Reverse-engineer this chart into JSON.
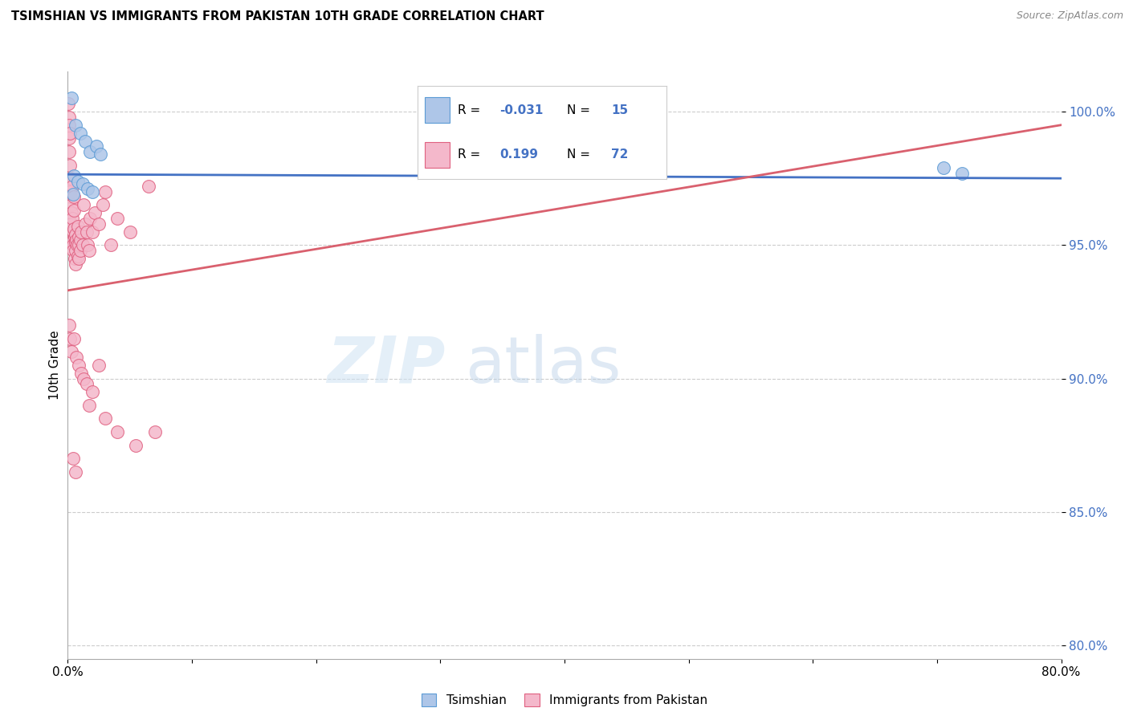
{
  "title": "TSIMSHIAN VS IMMIGRANTS FROM PAKISTAN 10TH GRADE CORRELATION CHART",
  "source": "Source: ZipAtlas.com",
  "ylabel": "10th Grade",
  "xlim": [
    0.0,
    80.0
  ],
  "ylim": [
    79.5,
    101.5
  ],
  "blue_R": -0.031,
  "blue_N": 15,
  "pink_R": 0.199,
  "pink_N": 72,
  "blue_color": "#aec6e8",
  "blue_edge_color": "#5b9bd5",
  "blue_line_color": "#4472c4",
  "pink_color": "#f4b8cb",
  "pink_edge_color": "#e06080",
  "pink_line_color": "#d9606e",
  "legend_label_blue": "Tsimshian",
  "legend_label_pink": "Immigrants from Pakistan",
  "blue_dots_x": [
    0.3,
    0.6,
    1.0,
    1.4,
    1.8,
    2.3,
    2.6,
    0.5,
    0.8,
    1.2,
    1.6,
    2.0,
    0.4,
    70.5,
    72.0
  ],
  "blue_dots_y": [
    100.5,
    99.5,
    99.2,
    98.9,
    98.5,
    98.7,
    98.4,
    97.6,
    97.4,
    97.3,
    97.1,
    97.0,
    96.9,
    97.9,
    97.7
  ],
  "pink_dots_x": [
    0.05,
    0.08,
    0.1,
    0.1,
    0.12,
    0.15,
    0.15,
    0.2,
    0.2,
    0.25,
    0.3,
    0.3,
    0.3,
    0.35,
    0.35,
    0.4,
    0.4,
    0.45,
    0.45,
    0.5,
    0.5,
    0.5,
    0.55,
    0.55,
    0.6,
    0.6,
    0.65,
    0.65,
    0.7,
    0.75,
    0.8,
    0.8,
    0.85,
    0.9,
    0.9,
    1.0,
    1.0,
    1.1,
    1.2,
    1.3,
    1.4,
    1.5,
    1.6,
    1.7,
    1.8,
    2.0,
    2.2,
    2.5,
    2.8,
    3.0,
    3.5,
    4.0,
    5.0,
    6.5,
    0.1,
    0.2,
    0.3,
    0.5,
    0.7,
    0.9,
    1.1,
    1.3,
    1.5,
    1.7,
    2.0,
    2.5,
    3.0,
    4.0,
    5.5,
    7.0,
    0.4,
    0.6
  ],
  "pink_dots_y": [
    100.3,
    99.8,
    99.5,
    99.0,
    98.5,
    98.0,
    99.2,
    97.5,
    97.0,
    96.8,
    96.5,
    96.2,
    95.8,
    97.2,
    96.0,
    95.5,
    95.2,
    95.0,
    94.8,
    96.8,
    96.3,
    95.6,
    95.3,
    94.5,
    95.1,
    94.8,
    95.4,
    94.3,
    95.2,
    95.0,
    95.7,
    94.6,
    95.3,
    95.0,
    94.5,
    95.2,
    94.8,
    95.5,
    95.0,
    96.5,
    95.8,
    95.5,
    95.0,
    94.8,
    96.0,
    95.5,
    96.2,
    95.8,
    96.5,
    97.0,
    95.0,
    96.0,
    95.5,
    97.2,
    92.0,
    91.5,
    91.0,
    91.5,
    90.8,
    90.5,
    90.2,
    90.0,
    89.8,
    89.0,
    89.5,
    90.5,
    88.5,
    88.0,
    87.5,
    88.0,
    87.0,
    86.5
  ],
  "pink_line_x0": 0.0,
  "pink_line_y0": 93.3,
  "pink_line_x1": 80.0,
  "pink_line_y1": 99.5,
  "blue_line_x0": 0.0,
  "blue_line_y0": 97.65,
  "blue_line_x1": 80.0,
  "blue_line_y1": 97.5
}
